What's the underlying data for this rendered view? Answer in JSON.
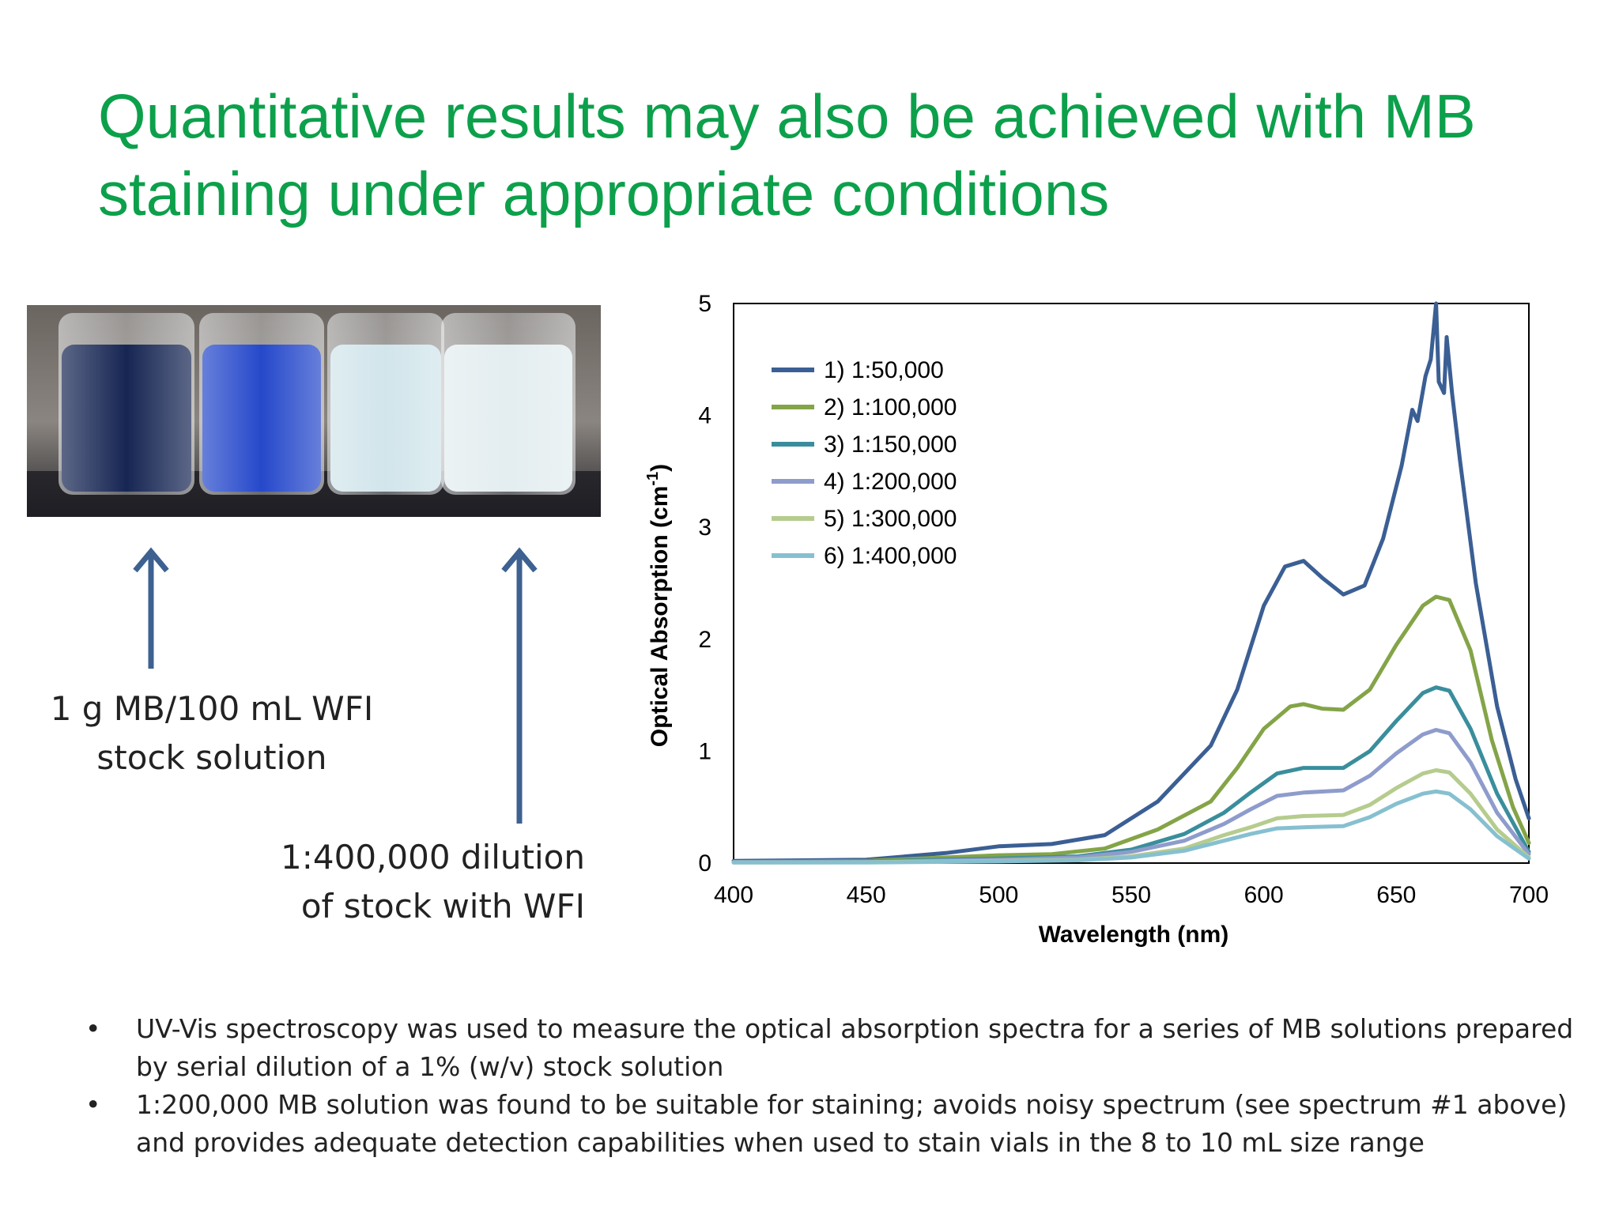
{
  "title": {
    "line1": "Quantitative results may also be achieved with MB",
    "line2": "staining under appropriate conditions"
  },
  "photo": {
    "icon": "vials-photo",
    "vial_colors": [
      "#0a1a4a",
      "#1a3fc8",
      "#cfe4ea",
      "#e2ecef"
    ]
  },
  "captions": {
    "stock_line1": "1 g MB/100 mL WFI",
    "stock_line2": "stock solution",
    "dilution_line1": "1:400,000  dilution",
    "dilution_line2": "of stock with WFI"
  },
  "colors": {
    "title": "#0ca04b",
    "arrow": "#3d6190"
  },
  "chart_data": {
    "type": "line",
    "title": "",
    "xlabel": "Wavelength (nm)",
    "ylabel": "Optical Absorption (cm",
    "ylabel_sup": "-1",
    "ylabel_close": ")",
    "xlim": [
      400,
      700
    ],
    "ylim": [
      0,
      5
    ],
    "xticks": [
      400,
      450,
      500,
      550,
      600,
      650,
      700
    ],
    "yticks": [
      0,
      1,
      2,
      3,
      4,
      5
    ],
    "grid": false,
    "legend_position": "top-left",
    "series": [
      {
        "name": "1) 1:50,000",
        "color": "#3b5f94",
        "points": [
          [
            400,
            0.02
          ],
          [
            450,
            0.03
          ],
          [
            480,
            0.09
          ],
          [
            500,
            0.15
          ],
          [
            520,
            0.17
          ],
          [
            540,
            0.25
          ],
          [
            560,
            0.55
          ],
          [
            580,
            1.05
          ],
          [
            590,
            1.55
          ],
          [
            600,
            2.3
          ],
          [
            608,
            2.65
          ],
          [
            615,
            2.7
          ],
          [
            622,
            2.55
          ],
          [
            630,
            2.4
          ],
          [
            638,
            2.48
          ],
          [
            645,
            2.9
          ],
          [
            652,
            3.55
          ],
          [
            656,
            4.05
          ],
          [
            658,
            3.95
          ],
          [
            661,
            4.35
          ],
          [
            663,
            4.5
          ],
          [
            665,
            5.0
          ],
          [
            666,
            4.3
          ],
          [
            668,
            4.2
          ],
          [
            669,
            4.7
          ],
          [
            671,
            4.2
          ],
          [
            674,
            3.6
          ],
          [
            680,
            2.5
          ],
          [
            688,
            1.4
          ],
          [
            695,
            0.75
          ],
          [
            700,
            0.4
          ]
        ]
      },
      {
        "name": "2) 1:100,000",
        "color": "#84a448",
        "points": [
          [
            400,
            0.01
          ],
          [
            450,
            0.02
          ],
          [
            480,
            0.05
          ],
          [
            500,
            0.07
          ],
          [
            520,
            0.08
          ],
          [
            540,
            0.13
          ],
          [
            560,
            0.3
          ],
          [
            580,
            0.55
          ],
          [
            590,
            0.85
          ],
          [
            600,
            1.2
          ],
          [
            610,
            1.4
          ],
          [
            615,
            1.42
          ],
          [
            622,
            1.38
          ],
          [
            630,
            1.37
          ],
          [
            640,
            1.55
          ],
          [
            650,
            1.95
          ],
          [
            660,
            2.3
          ],
          [
            665,
            2.38
          ],
          [
            670,
            2.35
          ],
          [
            678,
            1.9
          ],
          [
            686,
            1.1
          ],
          [
            694,
            0.5
          ],
          [
            700,
            0.18
          ]
        ]
      },
      {
        "name": "3) 1:150,000",
        "color": "#3a8e9c",
        "points": [
          [
            400,
            0.01
          ],
          [
            450,
            0.015
          ],
          [
            500,
            0.04
          ],
          [
            530,
            0.06
          ],
          [
            550,
            0.12
          ],
          [
            570,
            0.26
          ],
          [
            585,
            0.45
          ],
          [
            595,
            0.63
          ],
          [
            605,
            0.8
          ],
          [
            615,
            0.85
          ],
          [
            630,
            0.85
          ],
          [
            640,
            1.0
          ],
          [
            650,
            1.27
          ],
          [
            660,
            1.52
          ],
          [
            665,
            1.57
          ],
          [
            670,
            1.54
          ],
          [
            678,
            1.2
          ],
          [
            688,
            0.62
          ],
          [
            700,
            0.1
          ]
        ]
      },
      {
        "name": "4) 1:200,000",
        "color": "#8e9ccc",
        "points": [
          [
            400,
            0.01
          ],
          [
            450,
            0.01
          ],
          [
            500,
            0.03
          ],
          [
            530,
            0.05
          ],
          [
            550,
            0.1
          ],
          [
            570,
            0.2
          ],
          [
            585,
            0.35
          ],
          [
            595,
            0.48
          ],
          [
            605,
            0.6
          ],
          [
            615,
            0.63
          ],
          [
            630,
            0.65
          ],
          [
            640,
            0.78
          ],
          [
            650,
            0.98
          ],
          [
            660,
            1.15
          ],
          [
            665,
            1.19
          ],
          [
            670,
            1.16
          ],
          [
            678,
            0.9
          ],
          [
            688,
            0.45
          ],
          [
            700,
            0.08
          ]
        ]
      },
      {
        "name": "5) 1:300,000",
        "color": "#b5cc8e",
        "points": [
          [
            400,
            0.005
          ],
          [
            450,
            0.008
          ],
          [
            500,
            0.02
          ],
          [
            530,
            0.03
          ],
          [
            550,
            0.06
          ],
          [
            570,
            0.13
          ],
          [
            585,
            0.25
          ],
          [
            595,
            0.32
          ],
          [
            605,
            0.4
          ],
          [
            615,
            0.42
          ],
          [
            630,
            0.43
          ],
          [
            640,
            0.52
          ],
          [
            650,
            0.67
          ],
          [
            660,
            0.8
          ],
          [
            665,
            0.83
          ],
          [
            670,
            0.81
          ],
          [
            678,
            0.62
          ],
          [
            688,
            0.3
          ],
          [
            700,
            0.05
          ]
        ]
      },
      {
        "name": "6) 1:400,000",
        "color": "#86c0d0",
        "points": [
          [
            400,
            0.005
          ],
          [
            450,
            0.006
          ],
          [
            500,
            0.015
          ],
          [
            530,
            0.025
          ],
          [
            550,
            0.05
          ],
          [
            570,
            0.11
          ],
          [
            585,
            0.2
          ],
          [
            595,
            0.26
          ],
          [
            605,
            0.31
          ],
          [
            615,
            0.32
          ],
          [
            630,
            0.33
          ],
          [
            640,
            0.41
          ],
          [
            650,
            0.53
          ],
          [
            660,
            0.62
          ],
          [
            665,
            0.64
          ],
          [
            670,
            0.62
          ],
          [
            678,
            0.48
          ],
          [
            688,
            0.24
          ],
          [
            700,
            0.04
          ]
        ]
      }
    ]
  },
  "bullets": [
    {
      "marker": "•",
      "line1": "UV-Vis spectroscopy was used to measure the optical absorption spectra for a series of MB solutions prepared",
      "line2": "by serial dilution of a 1% (w/v) stock solution"
    },
    {
      "marker": "•",
      "line1": "1:200,000 MB solution was found to be suitable for staining; avoids noisy spectrum (see spectrum #1 above)",
      "line2": "and provides adequate detection capabilities when used to stain vials in the 8 to 10 mL size range"
    }
  ]
}
